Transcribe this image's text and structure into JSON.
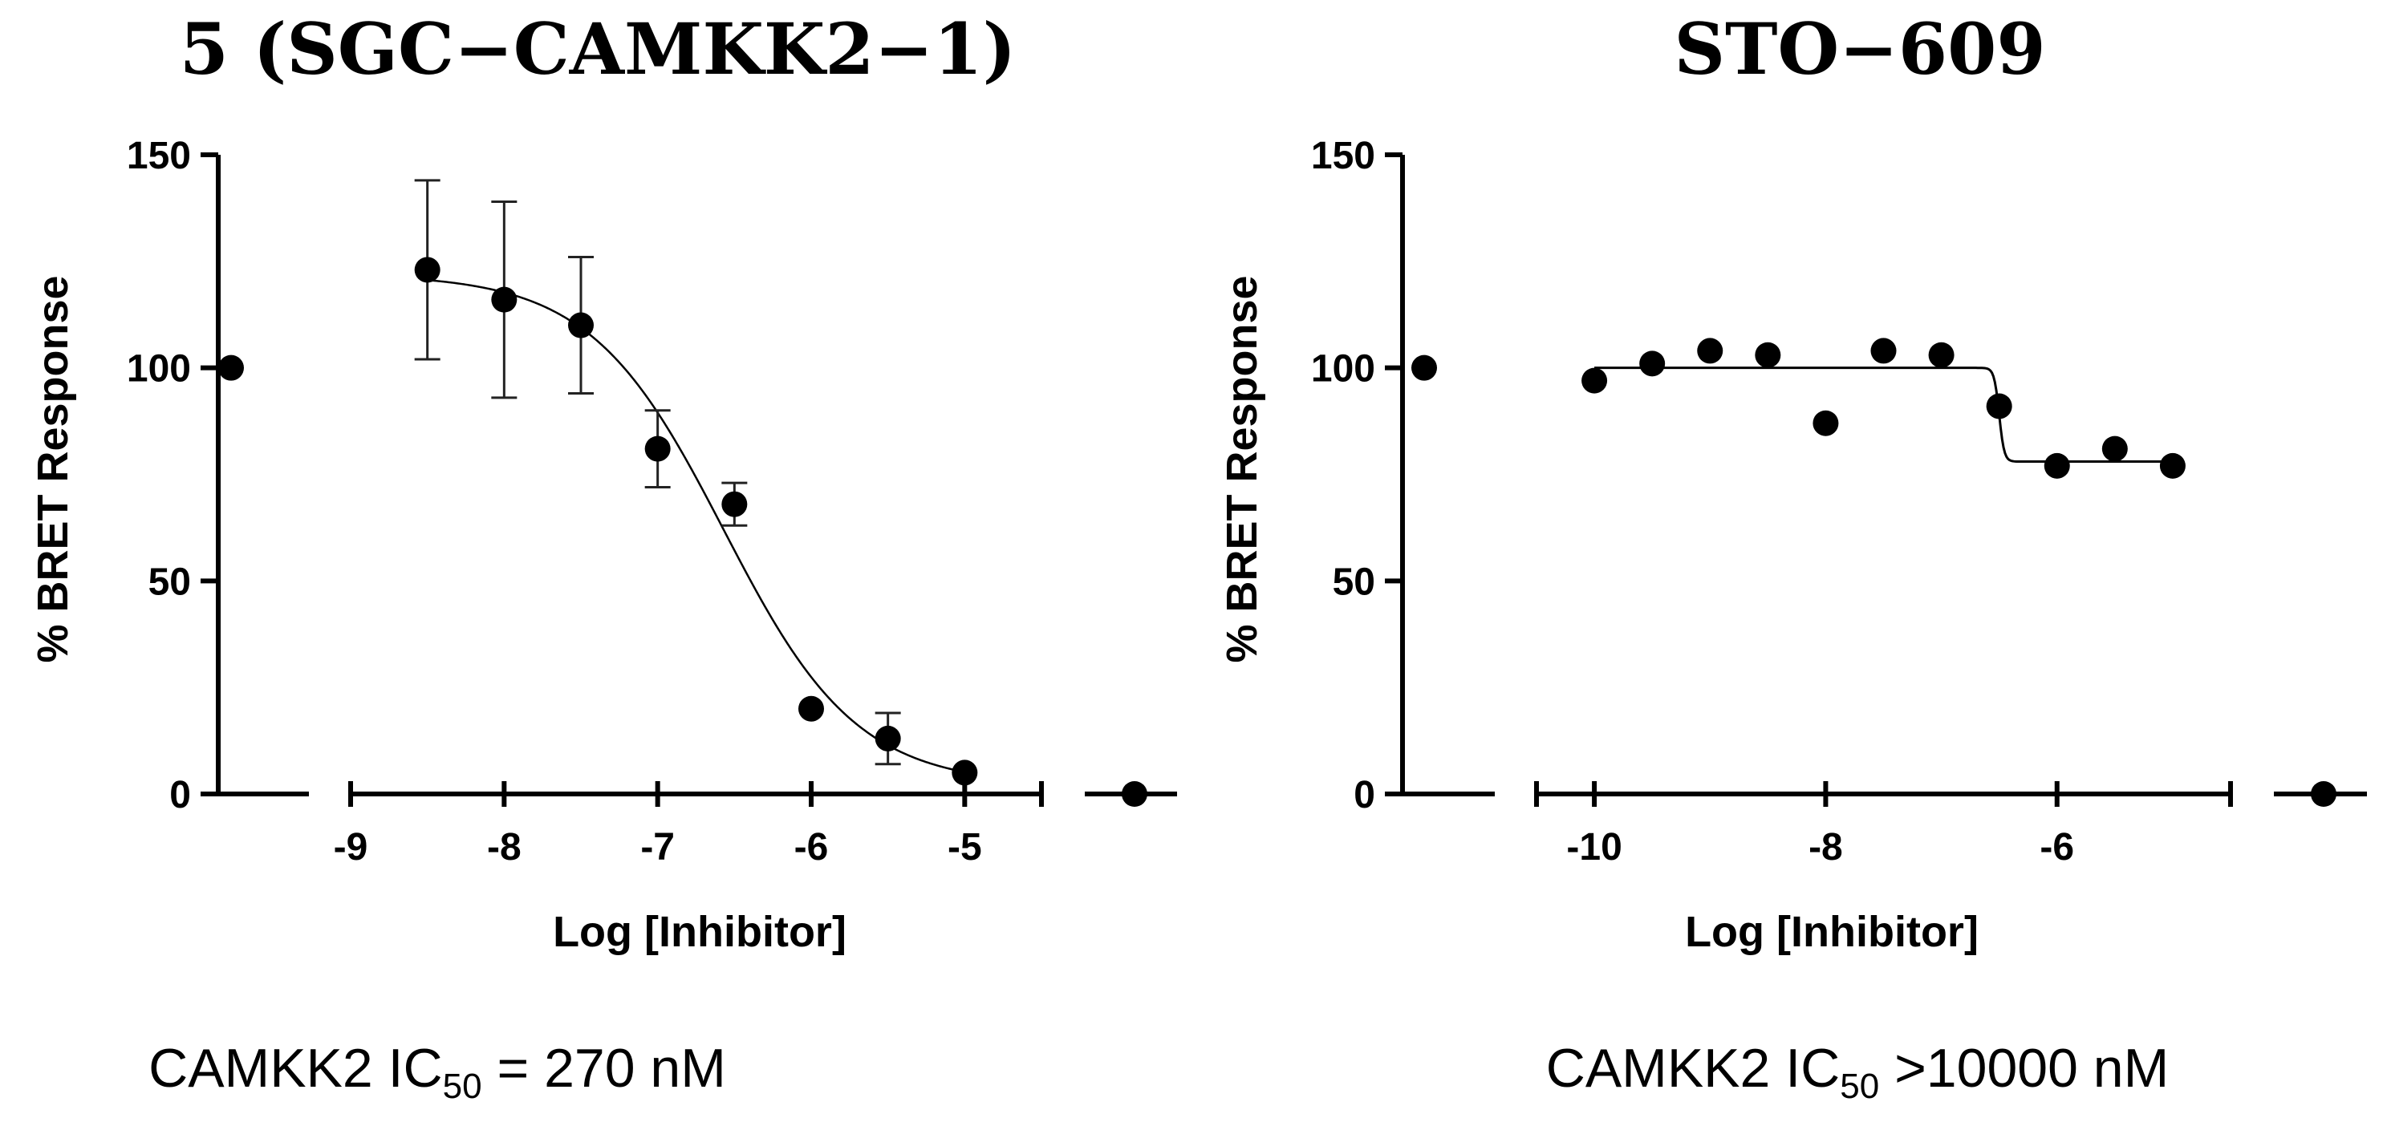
{
  "chart_data": [
    {
      "type": "scatter",
      "title": "5 (SGC−CAMKK2−1)",
      "xlabel": "Log [Inhibitor]",
      "ylabel": "% BRET Response",
      "xlim": [
        -9,
        -4.5
      ],
      "ylim": [
        0,
        150
      ],
      "yticks": [
        0,
        50,
        100,
        150
      ],
      "ytick_labels": [
        "0",
        "50",
        "100",
        "150"
      ],
      "xticks": [
        -9,
        -8,
        -7,
        -6,
        -5
      ],
      "xtick_labels": [
        "-9",
        "-8",
        "-7",
        "-6",
        "-5"
      ],
      "x": [
        -8.5,
        -8.0,
        -7.5,
        -7.0,
        -6.5,
        -6.0,
        -5.5,
        -5.0
      ],
      "y": [
        123,
        116,
        110,
        81,
        68,
        20,
        13,
        5
      ],
      "y_error": [
        21,
        23,
        16,
        9,
        5,
        0,
        6,
        0
      ],
      "controls": {
        "top": 100,
        "bottom": 0
      },
      "fit": {
        "model": "four-parameter logistic",
        "top": 122,
        "bottom": 2,
        "log_ic50": -6.57,
        "hill_slope": -1
      },
      "caption": {
        "prefix": "CAMKK2 IC",
        "subscript": "50",
        "suffix": " = 270 nM"
      }
    },
    {
      "type": "scatter",
      "title": "STO−609",
      "xlabel": "Log [Inhibitor]",
      "ylabel": "% BRET Response",
      "xlim": [
        -10.5,
        -4.5
      ],
      "ylim": [
        0,
        150
      ],
      "yticks": [
        0,
        50,
        100,
        150
      ],
      "ytick_labels": [
        "0",
        "50",
        "100",
        "150"
      ],
      "xticks": [
        -10,
        -8,
        -6
      ],
      "xtick_labels": [
        "-10",
        "-8",
        "-6"
      ],
      "x": [
        -10.0,
        -9.5,
        -9.0,
        -8.5,
        -8.0,
        -7.5,
        -7.0,
        -6.5,
        -6.0,
        -5.5,
        -5.0
      ],
      "y": [
        97,
        101,
        104,
        103,
        87,
        104,
        103,
        91,
        77,
        81,
        77
      ],
      "y_error": [],
      "controls": {
        "top": 100,
        "bottom": 0
      },
      "fit": {
        "model": "four-parameter logistic",
        "top": 100,
        "bottom": 78,
        "log_ic50": -6.5,
        "hill_slope": -20
      },
      "caption": {
        "prefix": "CAMKK2 IC",
        "subscript": "50",
        "suffix": " >10000 nM"
      }
    }
  ]
}
